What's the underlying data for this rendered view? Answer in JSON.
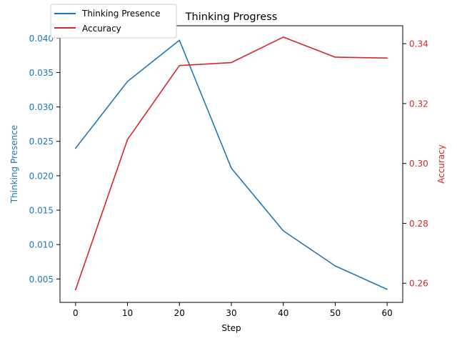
{
  "chart_data": {
    "type": "line",
    "title": "Thinking Progress",
    "xlabel": "Step",
    "x": [
      0,
      10,
      20,
      30,
      40,
      50,
      60
    ],
    "xlim": [
      -3,
      63
    ],
    "x_ticks": [
      0,
      10,
      20,
      30,
      40,
      50,
      60
    ],
    "grid": false,
    "legend_position": "top-left",
    "y_left": {
      "label": "Thinking Presence",
      "color": "#1f77b4",
      "lim": [
        0.0016,
        0.0418
      ],
      "ticks": [
        "0.005",
        "0.010",
        "0.015",
        "0.020",
        "0.025",
        "0.030",
        "0.035",
        "0.040"
      ]
    },
    "y_right": {
      "label": "Accuracy",
      "color": "#d62728",
      "lim": [
        0.2536,
        0.346
      ],
      "ticks": [
        "0.26",
        "0.28",
        "0.30",
        "0.32",
        "0.34"
      ]
    },
    "series": [
      {
        "name": "Thinking Presence",
        "axis": "left",
        "color": "#1f77b4",
        "values": [
          0.024,
          0.0337,
          0.0397,
          0.0211,
          0.012,
          0.0069,
          0.0035
        ]
      },
      {
        "name": "Accuracy",
        "axis": "right",
        "color": "#d62728",
        "values": [
          0.2578,
          0.308,
          0.3327,
          0.3337,
          0.3422,
          0.3355,
          0.3352
        ]
      }
    ]
  }
}
